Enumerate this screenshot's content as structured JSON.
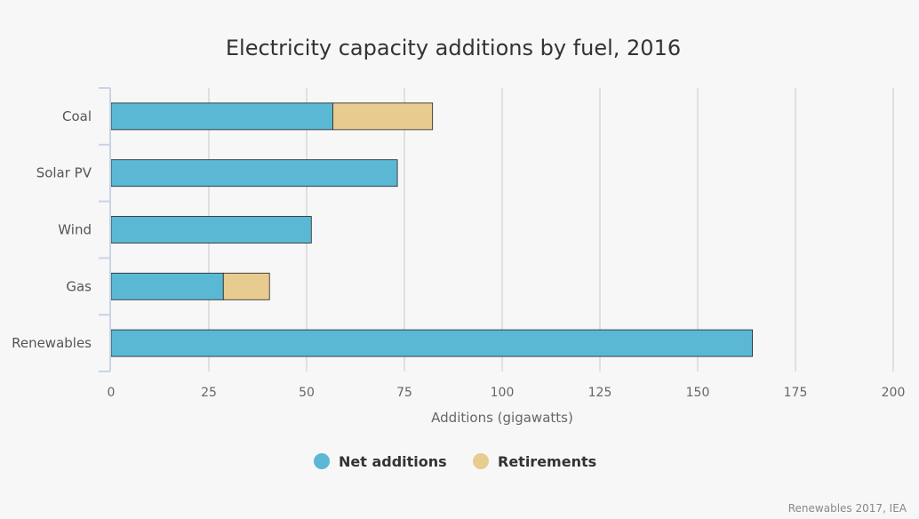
{
  "chart_data": {
    "type": "bar",
    "orientation": "horizontal",
    "stacked": true,
    "title": "Electricity capacity additions by fuel, 2016",
    "xlabel": "Additions (gigawatts)",
    "ylabel": "",
    "xlim": [
      0,
      200
    ],
    "x_ticks": [
      "0",
      "25",
      "50",
      "75",
      "100",
      "125",
      "150",
      "175",
      "200"
    ],
    "x_tick_values": [
      0,
      25,
      50,
      75,
      100,
      125,
      150,
      175,
      200
    ],
    "grid": "vertical",
    "categories": [
      "Coal",
      "Solar PV",
      "Wind",
      "Gas",
      "Renewables"
    ],
    "series": [
      {
        "name": "Net additions",
        "color": "#5bb8d4",
        "values": [
          56.7,
          73.2,
          51.2,
          28.7,
          164
        ]
      },
      {
        "name": "Retirements",
        "color": "#e8cb8e",
        "values": [
          25.5,
          0,
          0,
          11.8,
          0
        ]
      }
    ],
    "legend_position": "bottom",
    "credit": "Renewables 2017, IEA"
  }
}
